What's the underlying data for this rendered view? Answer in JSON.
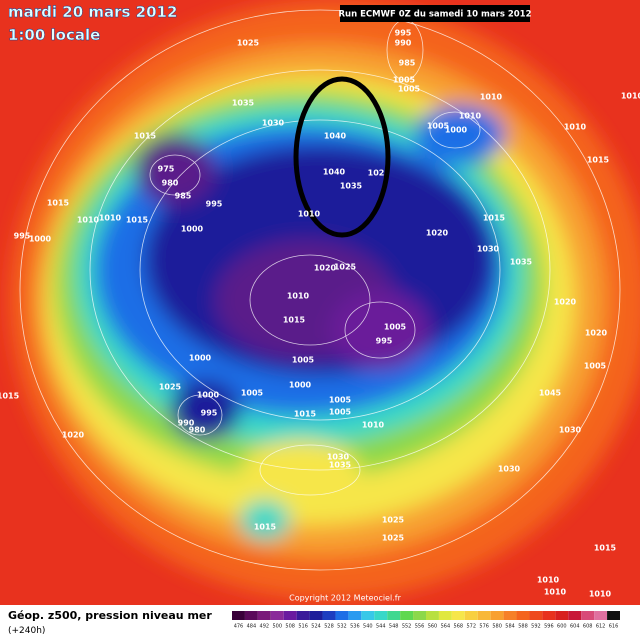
{
  "header": {
    "date": "mardi 20 mars 2012",
    "time": "1:00 locale",
    "run": "Run ECMWF 0Z du samedi 10 mars 2012"
  },
  "isobar_labels": [
    "1025",
    "995",
    "990",
    "985",
    "1005",
    "1005",
    "1010",
    "1035",
    "1030",
    "1040",
    "1005",
    "1000",
    "1010",
    "1015",
    "975",
    "980",
    "985",
    "995",
    "1040",
    "1035",
    "102",
    "1000",
    "1010",
    "1020",
    "1015",
    "1030",
    "1035",
    "1015",
    "1010",
    "1010",
    "1015",
    "995",
    "1000",
    "1020",
    "1025",
    "1010",
    "1015",
    "1005",
    "995",
    "1005",
    "1000",
    "1025",
    "1000",
    "995",
    "990",
    "980",
    "1005",
    "1000",
    "1005",
    "1015",
    "1005",
    "1010",
    "1020",
    "1030",
    "1035",
    "1030",
    "1030",
    "1045",
    "1015",
    "1025",
    "1025",
    "1015",
    "1010",
    "1010",
    "1010",
    "1015",
    "1010",
    "1015",
    "1020",
    "1020",
    "1005",
    "1010"
  ],
  "copyright": "Copyright 2012 Meteociel.fr",
  "legend": {
    "title": "Géop. z500, pression niveau mer",
    "subtitle": "(+240h)",
    "scale": [
      "476",
      "484",
      "492",
      "500",
      "508",
      "516",
      "524",
      "528",
      "532",
      "536",
      "540",
      "544",
      "548",
      "552",
      "556",
      "560",
      "564",
      "568",
      "572",
      "576",
      "580",
      "584",
      "588",
      "592",
      "596",
      "600",
      "604",
      "608",
      "612",
      "616"
    ]
  }
}
